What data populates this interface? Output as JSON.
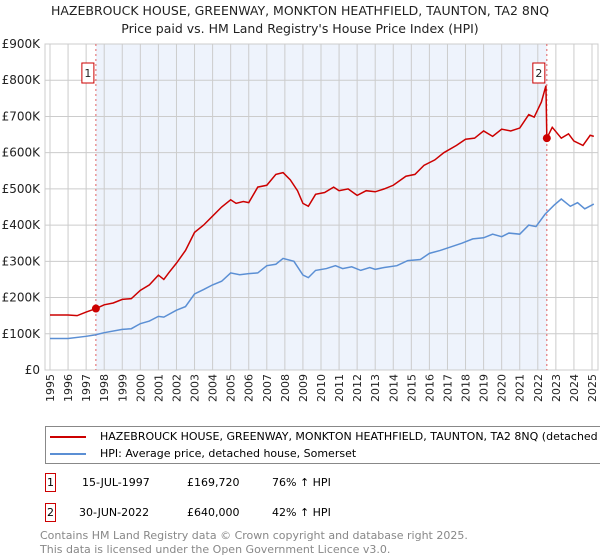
{
  "title": "HAZEBROUCK HOUSE, GREENWAY, MONKTON HEATHFIELD, TAUNTON, TA2 8NQ",
  "subtitle": "Price paid vs. HM Land Registry's House Price Index (HPI)",
  "chart_data": {
    "type": "line",
    "title": "Price paid vs. HM Land Registry's House Price Index (HPI)",
    "xlim": [
      1995,
      2025.2
    ],
    "ylim": [
      0,
      900000
    ],
    "y_ticks": [
      {
        "v": 0,
        "label": "£0"
      },
      {
        "v": 100000,
        "label": "£100K"
      },
      {
        "v": 200000,
        "label": "£200K"
      },
      {
        "v": 300000,
        "label": "£300K"
      },
      {
        "v": 400000,
        "label": "£400K"
      },
      {
        "v": 500000,
        "label": "£500K"
      },
      {
        "v": 600000,
        "label": "£600K"
      },
      {
        "v": 700000,
        "label": "£700K"
      },
      {
        "v": 800000,
        "label": "£800K"
      },
      {
        "v": 900000,
        "label": "£900K"
      }
    ],
    "x_ticks": [
      "1995",
      "1996",
      "1997",
      "1998",
      "1999",
      "2000",
      "2001",
      "2002",
      "2003",
      "2004",
      "2005",
      "2006",
      "2007",
      "2008",
      "2009",
      "2010",
      "2011",
      "2012",
      "2013",
      "2014",
      "2015",
      "2016",
      "2017",
      "2018",
      "2019",
      "2020",
      "2021",
      "2022",
      "2023",
      "2024",
      "2025"
    ],
    "grid": true,
    "shaded_range": [
      1997.54,
      2022.5
    ],
    "series": [
      {
        "name": "HAZEBROUCK HOUSE, GREENWAY, MONKTON HEATHFIELD, TAUNTON, TA2 8NQ (detached house)",
        "color": "#cc0000",
        "x": [
          1995,
          1996,
          1996.5,
          1997,
          1997.54,
          1998,
          1998.5,
          1999,
          1999.5,
          2000,
          2000.5,
          2001,
          2001.3,
          2001.6,
          2002,
          2002.5,
          2003,
          2003.5,
          2004,
          2004.5,
          2005,
          2005.3,
          2005.7,
          2006,
          2006.5,
          2007,
          2007.5,
          2007.9,
          2008.3,
          2008.7,
          2009,
          2009.3,
          2009.7,
          2010.2,
          2010.7,
          2011,
          2011.5,
          2012,
          2012.5,
          2013,
          2013.5,
          2014,
          2014.7,
          2015.2,
          2015.7,
          2016.3,
          2016.8,
          2017.5,
          2018,
          2018.5,
          2019,
          2019.5,
          2020,
          2020.5,
          2021,
          2021.5,
          2021.8,
          2022.2,
          2022.45,
          2022.5,
          2022.8,
          2023.3,
          2023.7,
          2024,
          2024.5,
          2024.9,
          2025.1
        ],
        "y": [
          152000,
          152000,
          150000,
          160000,
          169720,
          180000,
          185000,
          195000,
          197000,
          220000,
          235000,
          262000,
          250000,
          270000,
          295000,
          330000,
          380000,
          400000,
          425000,
          450000,
          470000,
          460000,
          465000,
          462000,
          505000,
          510000,
          540000,
          545000,
          525000,
          495000,
          460000,
          452000,
          485000,
          490000,
          505000,
          495000,
          500000,
          482000,
          495000,
          492000,
          500000,
          510000,
          535000,
          540000,
          565000,
          580000,
          600000,
          620000,
          637000,
          640000,
          660000,
          645000,
          665000,
          660000,
          668000,
          705000,
          698000,
          740000,
          785000,
          640000,
          670000,
          640000,
          652000,
          632000,
          620000,
          648000,
          645000
        ]
      },
      {
        "name": "HPI: Average price, detached house, Somerset",
        "color": "#5b8fd4",
        "x": [
          1995,
          1996,
          1997,
          1997.5,
          1998,
          1999,
          1999.5,
          2000,
          2000.5,
          2001,
          2001.3,
          2002,
          2002.5,
          2003,
          2003.5,
          2004,
          2004.5,
          2005,
          2005.5,
          2006,
          2006.5,
          2007,
          2007.5,
          2007.9,
          2008.5,
          2009,
          2009.3,
          2009.7,
          2010.3,
          2010.8,
          2011.2,
          2011.7,
          2012.2,
          2012.7,
          2013,
          2013.5,
          2014.2,
          2014.8,
          2015.5,
          2016,
          2016.6,
          2017.2,
          2017.8,
          2018.4,
          2019,
          2019.5,
          2020,
          2020.4,
          2021,
          2021.5,
          2021.9,
          2022.4,
          2022.9,
          2023.3,
          2023.8,
          2024.2,
          2024.6,
          2025.1
        ],
        "y": [
          87000,
          87000,
          93000,
          97000,
          103000,
          112000,
          114000,
          128000,
          135000,
          148000,
          146000,
          165000,
          175000,
          210000,
          222000,
          235000,
          245000,
          268000,
          263000,
          266000,
          268000,
          288000,
          292000,
          308000,
          300000,
          262000,
          255000,
          275000,
          280000,
          288000,
          280000,
          285000,
          275000,
          283000,
          278000,
          283000,
          288000,
          302000,
          305000,
          322000,
          330000,
          340000,
          350000,
          362000,
          365000,
          375000,
          368000,
          378000,
          375000,
          400000,
          396000,
          430000,
          455000,
          472000,
          452000,
          462000,
          445000,
          458000
        ]
      }
    ],
    "annotations": [
      {
        "label": "1",
        "x": 1997.54,
        "y": 169720
      },
      {
        "label": "2",
        "x": 2022.5,
        "y": 640000
      }
    ]
  },
  "legend": [
    "HAZEBROUCK HOUSE, GREENWAY, MONKTON HEATHFIELD, TAUNTON, TA2 8NQ (detached house)",
    "HPI: Average price, detached house, Somerset"
  ],
  "sales": [
    {
      "num": "1",
      "date": "15-JUL-1997",
      "price": "£169,720",
      "hpi": "76% ↑ HPI"
    },
    {
      "num": "2",
      "date": "30-JUN-2022",
      "price": "£640,000",
      "hpi": "42% ↑ HPI"
    }
  ],
  "footer": [
    "Contains HM Land Registry data © Crown copyright and database right 2025.",
    "This data is licensed under the Open Government Licence v3.0."
  ]
}
